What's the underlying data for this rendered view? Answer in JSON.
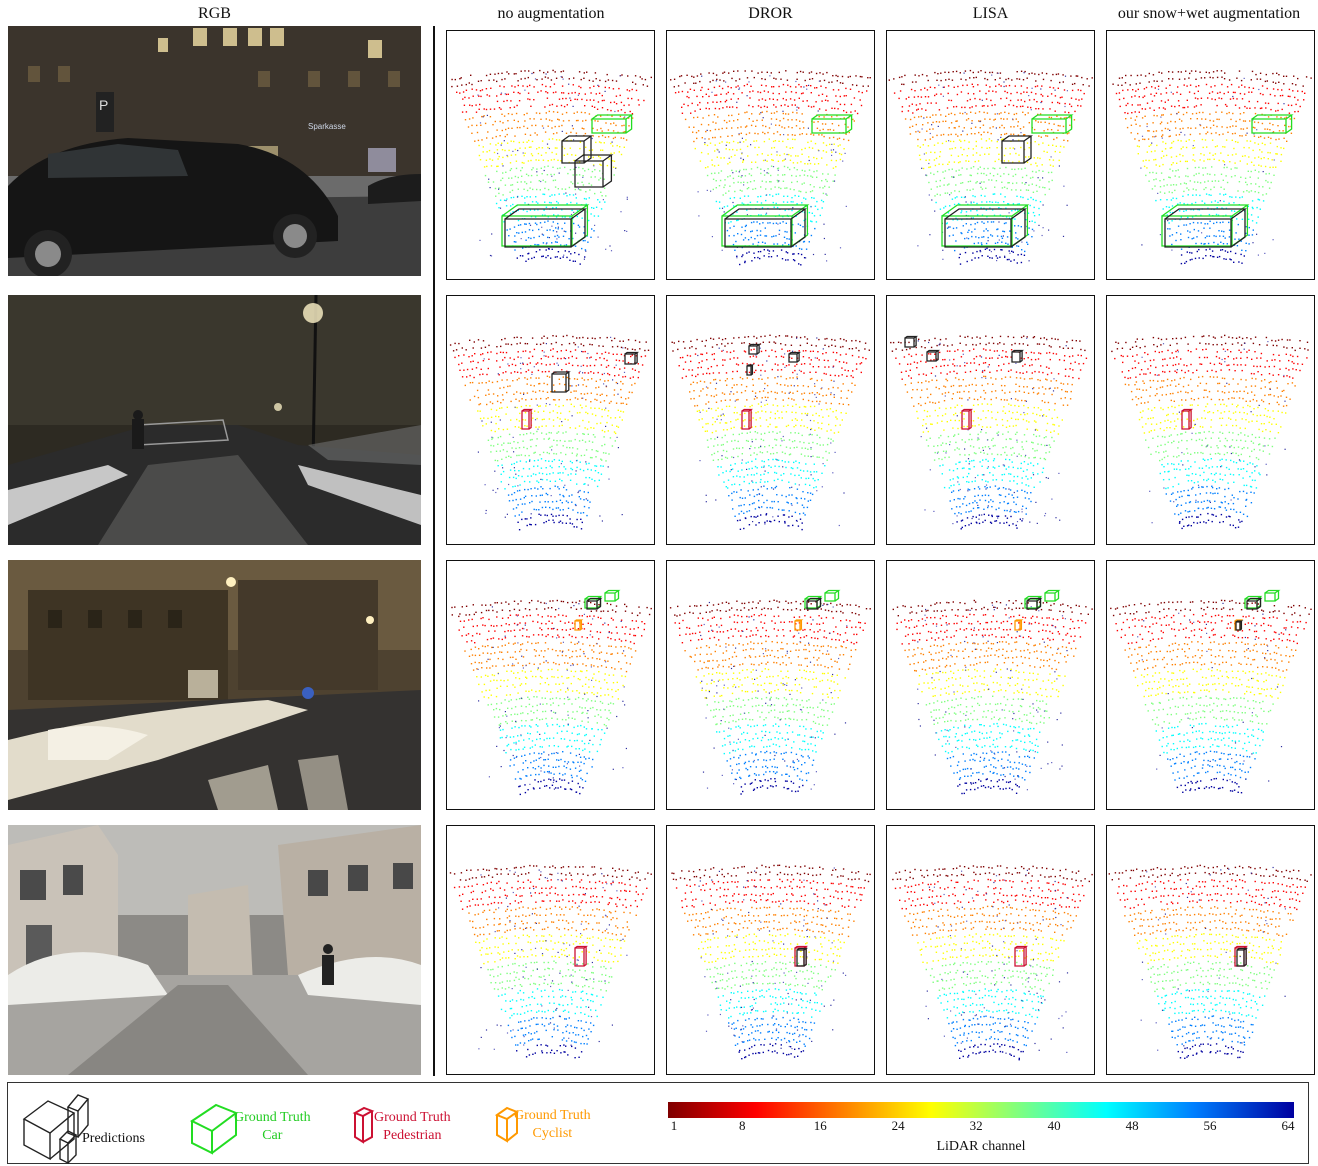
{
  "headers": [
    "RGB",
    "no augmentation",
    "DROR",
    "LISA",
    "our snow+wet augmentation"
  ],
  "legend": {
    "predictions": "Predictions",
    "gt_car_line1": "Ground Truth",
    "gt_car_line2": "Car",
    "gt_ped_line1": "Ground Truth",
    "gt_ped_line2": "Pedestrian",
    "gt_cyc_line1": "Ground Truth",
    "gt_cyc_line2": "Cyclist",
    "colorbar_ticks": [
      "1",
      "8",
      "16",
      "24",
      "32",
      "40",
      "48",
      "56",
      "64"
    ],
    "colorbar_label": "LiDAR channel"
  },
  "colors": {
    "prediction": "#222222",
    "gt_car": "#22dd22",
    "gt_pedestrian": "#cc1133",
    "gt_cyclist": "#ff9900"
  },
  "rgb_scene_sign_text": "Sparkasse"
}
